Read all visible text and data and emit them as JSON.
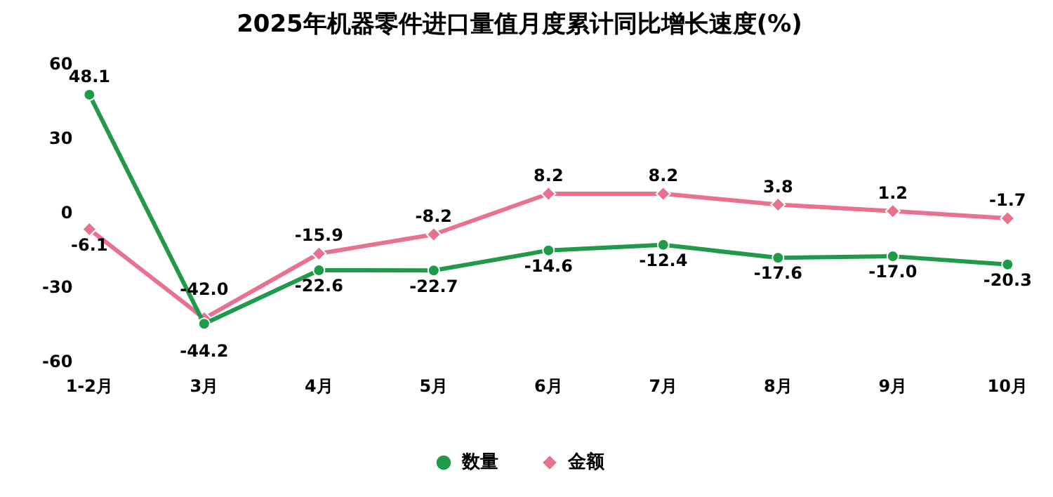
{
  "chart_data": {
    "type": "line",
    "title": "2025年机器零件进口量值月度累计同比增长速度(%)",
    "categories": [
      "1-2月",
      "3月",
      "4月",
      "5月",
      "6月",
      "7月",
      "8月",
      "9月",
      "10月"
    ],
    "series": [
      {
        "name": "数量",
        "color": "#1e9a48",
        "marker": "circle",
        "values": [
          48.1,
          -44.2,
          -22.6,
          -22.7,
          -14.6,
          -12.4,
          -17.6,
          -17.0,
          -20.3
        ],
        "value_labels": [
          "48.1",
          "-44.2",
          "-22.6",
          "-22.7",
          "-14.6",
          "-12.4",
          "-17.6",
          "-17.0",
          "-20.3"
        ]
      },
      {
        "name": "金额",
        "color": "#e8718f",
        "marker": "diamond",
        "values": [
          -6.1,
          -42.0,
          -15.9,
          -8.2,
          8.2,
          8.2,
          3.8,
          1.2,
          -1.7
        ],
        "value_labels": [
          "-6.1",
          "-42.0",
          "-15.9",
          "-8.2",
          "8.2",
          "8.2",
          "3.8",
          "1.2",
          "-1.7"
        ]
      }
    ],
    "ylim": [
      -60,
      60
    ],
    "yticks": [
      -60,
      -30,
      0,
      30,
      60
    ],
    "grid": false,
    "legend": "bottom"
  }
}
